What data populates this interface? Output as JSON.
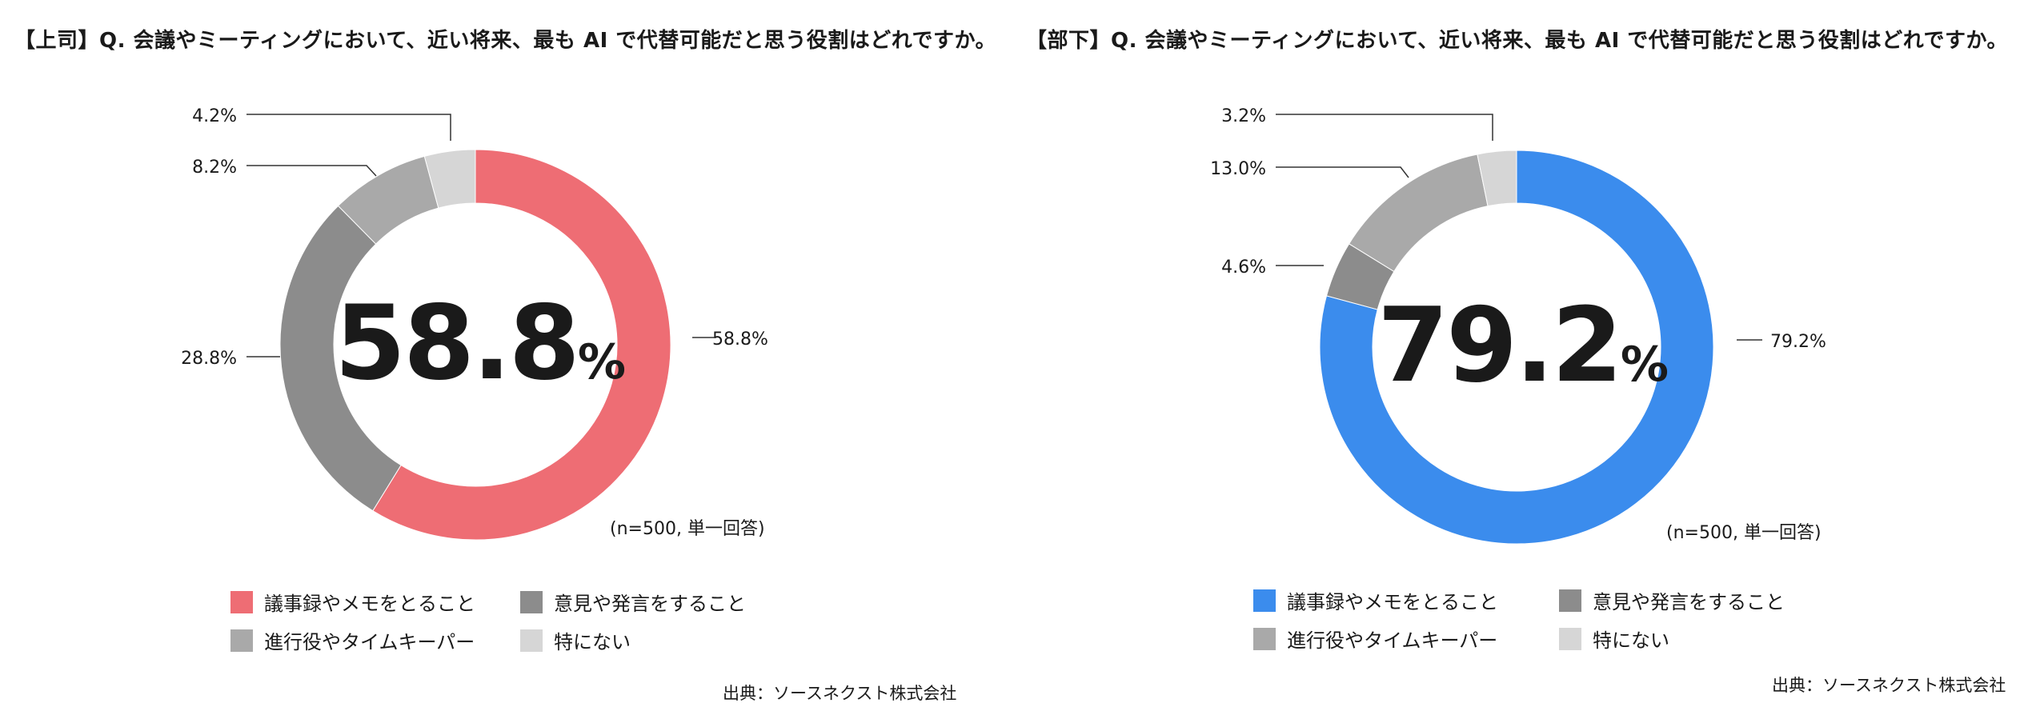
{
  "colors": {
    "left_main": "#ee6d74",
    "right_main": "#3b8ced",
    "opinion": "#8c8c8c",
    "facilitator": "#a9a9a9",
    "none": "#d6d6d6",
    "leader": "#333333"
  },
  "legend": [
    {
      "label": "議事録やメモをとること"
    },
    {
      "label": "意見や発言をすること"
    },
    {
      "label": "進行役やタイムキーパー"
    },
    {
      "label": "特にない"
    }
  ],
  "chart_data": [
    {
      "type": "pie",
      "title": "【上司】Q. 会議やミーティングにおいて、近い将来、最も AI で代替可能だと思う役割はどれですか。",
      "center_value": "58.8",
      "center_unit": "%",
      "note": "(n=500, 単一回答)",
      "source": "出典：ソースネクスト株式会社",
      "slices": [
        {
          "name": "議事録やメモをとること",
          "value": 58.8,
          "label": "58.8%"
        },
        {
          "name": "意見や発言をすること",
          "value": 28.8,
          "label": "28.8%"
        },
        {
          "name": "進行役やタイムキーパー",
          "value": 8.2,
          "label": "8.2%"
        },
        {
          "name": "特にない",
          "value": 4.2,
          "label": "4.2%"
        }
      ]
    },
    {
      "type": "pie",
      "title": "【部下】Q. 会議やミーティングにおいて、近い将来、最も AI で代替可能だと思う役割はどれですか。",
      "center_value": "79.2",
      "center_unit": "%",
      "note": "(n=500, 単一回答)",
      "source": "出典：ソースネクスト株式会社",
      "slices": [
        {
          "name": "議事録やメモをとること",
          "value": 79.2,
          "label": "79.2%"
        },
        {
          "name": "意見や発言をすること",
          "value": 4.6,
          "label": "4.6%"
        },
        {
          "name": "進行役やタイムキーパー",
          "value": 13.0,
          "label": "13.0%"
        },
        {
          "name": "特にない",
          "value": 3.2,
          "label": "3.2%"
        }
      ]
    }
  ]
}
